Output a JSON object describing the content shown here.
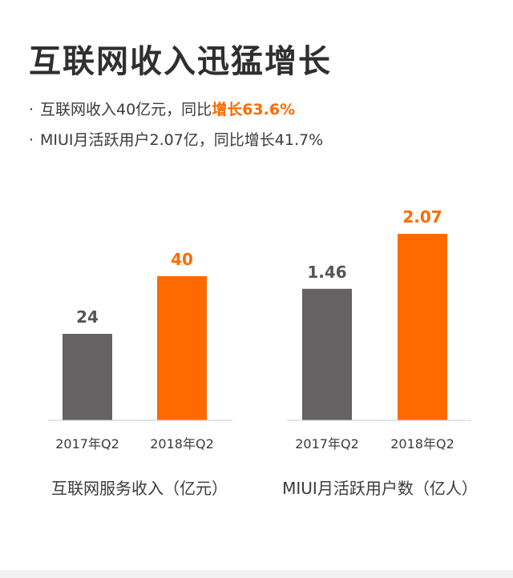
{
  "header": {
    "title": "互联网收入迅猛增长",
    "bullets": [
      {
        "prefix": "互联网收入40亿元，同比",
        "highlight": "增长63.6%",
        "suffix": ""
      },
      {
        "prefix": "MIUI月活跃用户2.07亿，同比增长41.7%",
        "highlight": "",
        "suffix": ""
      }
    ]
  },
  "colors": {
    "accent": "#ff6a00",
    "neutral": "#666263",
    "text": "#3a3a3a"
  },
  "chart_data": [
    {
      "type": "bar",
      "title": "互联网服务收入（亿元）",
      "categories": [
        "2017年Q2",
        "2018年Q2"
      ],
      "values": [
        24,
        40
      ],
      "value_labels": [
        "24",
        "40"
      ],
      "ylim": [
        0,
        70
      ]
    },
    {
      "type": "bar",
      "title": "MIUI月活跃用户数（亿人）",
      "categories": [
        "2017年Q2",
        "2018年Q2"
      ],
      "values": [
        1.46,
        2.07
      ],
      "value_labels": [
        "1.46",
        "2.07"
      ],
      "ylim": [
        0,
        2.8
      ]
    }
  ]
}
